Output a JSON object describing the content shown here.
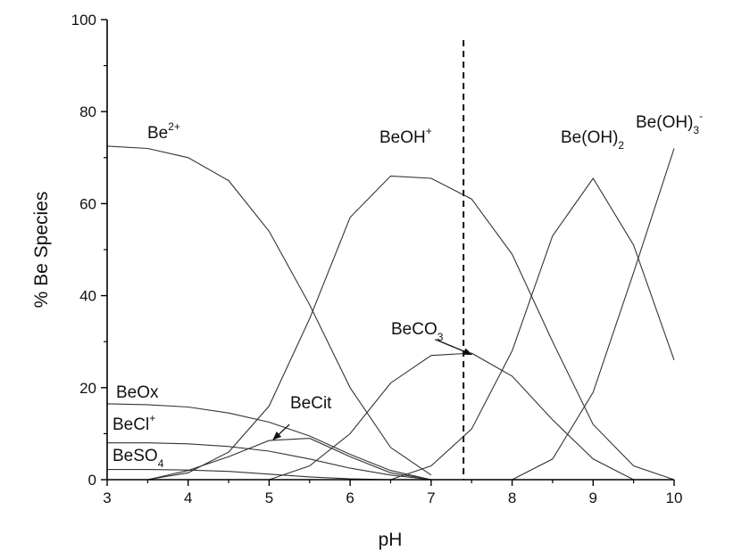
{
  "chart_data": {
    "type": "line",
    "xlabel": "pH",
    "ylabel": "% Be Species",
    "xlim": [
      3,
      10
    ],
    "ylim": [
      0,
      100
    ],
    "xticks": [
      "3",
      "4",
      "5",
      "6",
      "7",
      "8",
      "9",
      "10"
    ],
    "yticks": [
      "0",
      "20",
      "40",
      "60",
      "80",
      "100"
    ],
    "grid": false,
    "colors": {
      "lines": "#333333",
      "axes": "#000000",
      "background": "#ffffff"
    },
    "reference_line": {
      "x": 7.4,
      "style": "dashed"
    },
    "series": [
      {
        "name": "Be2+",
        "label": {
          "base": "Be",
          "sup": "2+",
          "sub": "",
          "tail": ""
        },
        "x": [
          3,
          3.5,
          4,
          4.5,
          5,
          5.5,
          6,
          6.5,
          7
        ],
        "y": [
          72.5,
          72,
          70,
          65,
          54,
          38,
          20,
          7,
          1
        ]
      },
      {
        "name": "BeOH+",
        "label": {
          "base": "BeOH",
          "sup": "+",
          "sub": "",
          "tail": ""
        },
        "x": [
          3.5,
          4,
          4.5,
          5,
          5.5,
          6,
          6.5,
          7,
          7.5,
          8,
          8.5,
          9,
          9.5,
          10
        ],
        "y": [
          0,
          1.5,
          6,
          16,
          35,
          57,
          66,
          65.5,
          61,
          49,
          30,
          12,
          3,
          0
        ]
      },
      {
        "name": "Be(OH)2",
        "label": {
          "base": "Be(OH)",
          "sup": "",
          "sub": "2",
          "tail": ""
        },
        "x": [
          6.5,
          7,
          7.5,
          8,
          8.5,
          9,
          9.5,
          10
        ],
        "y": [
          0,
          3,
          11,
          28,
          53,
          65.5,
          51,
          26
        ]
      },
      {
        "name": "Be(OH)3-",
        "label": {
          "base": "Be(OH)",
          "sup": "",
          "sub": "3",
          "tail": "-"
        },
        "x": [
          8,
          8.5,
          9,
          9.5,
          10
        ],
        "y": [
          0,
          4.5,
          19,
          45,
          72
        ]
      },
      {
        "name": "BeCO3",
        "label": {
          "base": "BeCO",
          "sup": "",
          "sub": "3",
          "tail": ""
        },
        "x": [
          5,
          5.5,
          6,
          6.5,
          7,
          7.5,
          8,
          8.5,
          9,
          9.5
        ],
        "y": [
          0,
          3,
          10,
          21,
          27,
          27.5,
          22.5,
          13,
          4.5,
          0
        ]
      },
      {
        "name": "BeOx",
        "label": {
          "base": "BeOx",
          "sup": "",
          "sub": "",
          "tail": ""
        },
        "x": [
          3,
          3.5,
          4,
          4.5,
          5,
          5.5,
          6,
          6.5,
          7
        ],
        "y": [
          16.5,
          16.3,
          15.8,
          14.5,
          12.5,
          9.5,
          5.5,
          2,
          0
        ]
      },
      {
        "name": "BeCl+",
        "label": {
          "base": "BeCl",
          "sup": "+",
          "sub": "",
          "tail": ""
        },
        "x": [
          3,
          3.5,
          4,
          4.5,
          5,
          5.5,
          6,
          6.5,
          7
        ],
        "y": [
          8,
          8,
          7.8,
          7.2,
          6.2,
          4.5,
          2.5,
          1,
          0
        ]
      },
      {
        "name": "BeSO4",
        "label": {
          "base": "BeSO",
          "sup": "",
          "sub": "4",
          "tail": ""
        },
        "x": [
          3,
          3.5,
          4,
          4.5,
          5,
          5.5,
          6,
          6.5
        ],
        "y": [
          2.2,
          2.2,
          2.1,
          1.8,
          1.2,
          0.6,
          0.2,
          0
        ]
      },
      {
        "name": "BeCit",
        "label": {
          "base": "BeCit",
          "sup": "",
          "sub": "",
          "tail": ""
        },
        "x": [
          3.5,
          4,
          4.5,
          5,
          5.5,
          6,
          6.5,
          7
        ],
        "y": [
          0,
          2,
          5,
          8.5,
          9,
          5,
          1.5,
          0
        ]
      }
    ],
    "arrows": [
      {
        "label": "BeCO3",
        "from": [
          7.05,
          30.5
        ],
        "to": [
          7.5,
          27.2
        ]
      },
      {
        "label": "BeCit",
        "from": [
          5.25,
          12
        ],
        "to": [
          5.05,
          8.7
        ]
      }
    ]
  }
}
